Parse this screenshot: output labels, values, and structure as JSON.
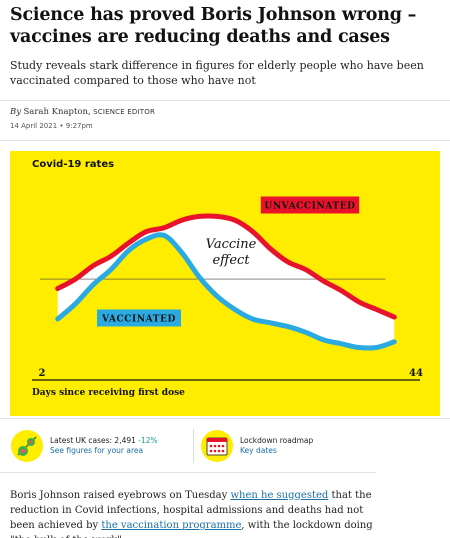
{
  "article": {
    "headline": "Science has proved Boris Johnson wrong – vaccines are reducing deaths and cases",
    "standfirst": "Study reveals stark difference in figures for elderly people who have been vaccinated compared to those who have not",
    "byline_by": "By",
    "author": "Sarah Knapton,",
    "author_role": "Science Editor",
    "dateline": "14 April 2021 • 9:27pm"
  },
  "chart_data": {
    "type": "area",
    "title": "Covid-19 rates",
    "xlabel": "Days since receiving first dose",
    "ylabel": "",
    "x_ticks": [
      "2",
      "44"
    ],
    "xlim": [
      2,
      44
    ],
    "ylim": [
      0,
      10
    ],
    "grid": false,
    "background": "#ffed00",
    "annotation": "Vaccine effect",
    "series": [
      {
        "name": "UNVACCINATED",
        "color": "#e8132b",
        "x": [
          4,
          6,
          8,
          10,
          12,
          14,
          16,
          18,
          20,
          22,
          24,
          26,
          28,
          30,
          32,
          34,
          36,
          38,
          40,
          42
        ],
        "values": [
          4.6,
          5.1,
          5.8,
          6.3,
          7.0,
          7.6,
          7.8,
          8.2,
          8.4,
          8.4,
          8.2,
          7.6,
          6.7,
          6.0,
          5.6,
          5.0,
          4.5,
          3.9,
          3.5,
          3.1
        ]
      },
      {
        "name": "VACCINATED",
        "color": "#2aaae0",
        "x": [
          4,
          6,
          8,
          10,
          12,
          14,
          16,
          18,
          20,
          22,
          24,
          26,
          28,
          30,
          32,
          34,
          36,
          38,
          40,
          42
        ],
        "values": [
          3.0,
          3.8,
          4.8,
          5.6,
          6.6,
          7.2,
          7.4,
          6.5,
          5.2,
          4.2,
          3.5,
          3.0,
          2.8,
          2.6,
          2.3,
          1.9,
          1.7,
          1.5,
          1.5,
          1.8
        ]
      }
    ]
  },
  "widgets": {
    "cases": {
      "label": "Latest UK cases:",
      "value": "2,491",
      "change": "-12%",
      "link": "See figures for your area",
      "icon": "covid-virus-icon"
    },
    "roadmap": {
      "label": "Lockdown roadmap",
      "link": "Key dates",
      "icon": "calendar-icon"
    }
  },
  "body": {
    "p1_a": "Boris Johnson raised eyebrows on Tuesday ",
    "p1_link1": "when he suggested",
    "p1_b": " that the reduction in Covid infections, hospital admissions and deaths had not been achieved by ",
    "p1_link2": "the vaccination programme",
    "p1_c": ", with the lockdown doing \"the bulk of the work\"."
  },
  "colors": {
    "chart_bg": "#ffed00",
    "unvaccinated": "#e8132b",
    "vaccinated": "#2aaae0",
    "link": "#1a6fa8"
  }
}
